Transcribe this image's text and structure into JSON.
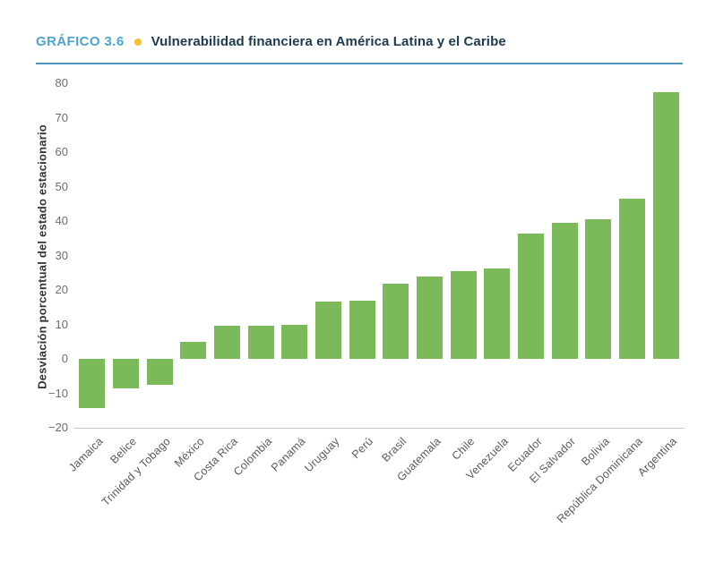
{
  "header": {
    "label": "GRÁFICO 3.6",
    "title": "Vulnerabilidad financiera en América Latina y el Caribe",
    "label_color": "#4aa4d6",
    "title_color": "#1c3a50",
    "bullet_color": "#f5bf35",
    "rule_color": "#4e96be"
  },
  "chart_data": {
    "type": "bar",
    "title": "Vulnerabilidad financiera en América Latina y el Caribe",
    "ylabel": "Desviación porcentual del estado estacionario",
    "xlabel": "",
    "ylim": [
      -20,
      80
    ],
    "yticks": [
      80,
      70,
      60,
      50,
      40,
      30,
      20,
      10,
      0,
      -10,
      -20
    ],
    "grid": false,
    "legend": null,
    "bar_color": "#7cb95a",
    "axis_line_color": "#c9c9c9",
    "ytick_label_color": "#6e6e6e",
    "xtick_label_color": "#5a5a5a",
    "categories": [
      "Jamaica",
      "Belice",
      "Trinidad y Tobago",
      "México",
      "Costa Rica",
      "Colombia",
      "Panamá",
      "Uruguay",
      "Perú",
      "Brasil",
      "Guatemala",
      "Chile",
      "Venezuela",
      "Ecuador",
      "El Salvador",
      "Bolivia",
      "República Dominicana",
      "Argentina"
    ],
    "values": [
      -14.2,
      -8.7,
      -7.5,
      5.0,
      9.5,
      9.7,
      9.9,
      16.5,
      16.8,
      21.8,
      23.9,
      25.5,
      26.3,
      36.3,
      39.5,
      40.5,
      46.4,
      77.4
    ]
  }
}
